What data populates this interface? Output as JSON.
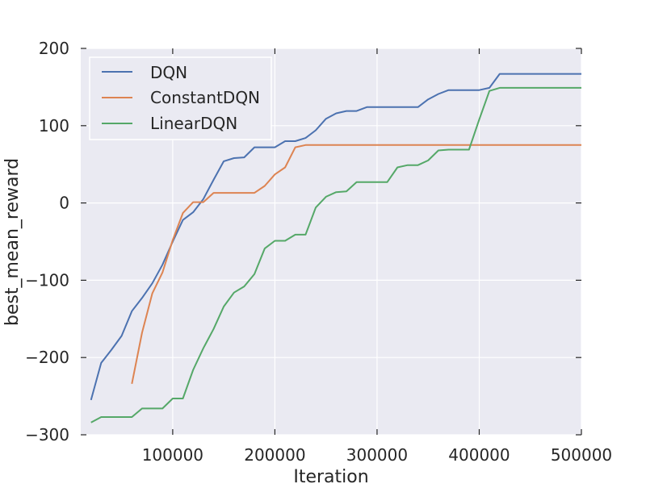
{
  "chart_data": {
    "type": "line",
    "title": "",
    "xlabel": "Iteration",
    "ylabel": "best_mean_reward",
    "xlim": [
      10000,
      500000
    ],
    "ylim": [
      -300,
      200
    ],
    "grid": true,
    "plot_background": "#eaeaf2",
    "grid_color": "#ffffff",
    "legend_position": "upper-left",
    "x_ticks": [
      100000,
      200000,
      300000,
      400000,
      500000
    ],
    "x_tick_labels": [
      "100000",
      "200000",
      "300000",
      "400000",
      "500000"
    ],
    "y_ticks": [
      -300,
      -200,
      -100,
      0,
      100,
      200
    ],
    "y_tick_labels": [
      "−300",
      "−200",
      "−100",
      "0",
      "100",
      "200"
    ],
    "series": [
      {
        "name": "DQN",
        "color": "#4c72b0",
        "points": [
          [
            20000,
            -255
          ],
          [
            30000,
            -207
          ],
          [
            40000,
            -190
          ],
          [
            50000,
            -172
          ],
          [
            60000,
            -140
          ],
          [
            70000,
            -123
          ],
          [
            80000,
            -104
          ],
          [
            90000,
            -80
          ],
          [
            100000,
            -50
          ],
          [
            110000,
            -22
          ],
          [
            120000,
            -12
          ],
          [
            130000,
            5
          ],
          [
            140000,
            30
          ],
          [
            150000,
            54
          ],
          [
            160000,
            58
          ],
          [
            170000,
            59
          ],
          [
            180000,
            72
          ],
          [
            190000,
            72
          ],
          [
            200000,
            72
          ],
          [
            210000,
            80
          ],
          [
            220000,
            80
          ],
          [
            230000,
            84
          ],
          [
            240000,
            94
          ],
          [
            250000,
            109
          ],
          [
            260000,
            116
          ],
          [
            270000,
            119
          ],
          [
            280000,
            119
          ],
          [
            290000,
            124
          ],
          [
            300000,
            124
          ],
          [
            310000,
            124
          ],
          [
            320000,
            124
          ],
          [
            330000,
            124
          ],
          [
            340000,
            124
          ],
          [
            350000,
            134
          ],
          [
            360000,
            141
          ],
          [
            370000,
            146
          ],
          [
            380000,
            146
          ],
          [
            390000,
            146
          ],
          [
            400000,
            146
          ],
          [
            410000,
            149
          ],
          [
            420000,
            167
          ],
          [
            430000,
            167
          ],
          [
            440000,
            167
          ],
          [
            450000,
            167
          ],
          [
            460000,
            167
          ],
          [
            470000,
            167
          ],
          [
            480000,
            167
          ],
          [
            490000,
            167
          ],
          [
            500000,
            167
          ]
        ]
      },
      {
        "name": "ConstantDQN",
        "color": "#dd8452",
        "points": [
          [
            60000,
            -234
          ],
          [
            70000,
            -168
          ],
          [
            80000,
            -117
          ],
          [
            90000,
            -90
          ],
          [
            100000,
            -48
          ],
          [
            110000,
            -13
          ],
          [
            120000,
            1
          ],
          [
            130000,
            1
          ],
          [
            140000,
            13
          ],
          [
            150000,
            13
          ],
          [
            160000,
            13
          ],
          [
            170000,
            13
          ],
          [
            180000,
            13
          ],
          [
            190000,
            22
          ],
          [
            200000,
            37
          ],
          [
            210000,
            46
          ],
          [
            220000,
            72
          ],
          [
            230000,
            75
          ],
          [
            240000,
            75
          ],
          [
            250000,
            75
          ],
          [
            260000,
            75
          ],
          [
            270000,
            75
          ],
          [
            280000,
            75
          ],
          [
            290000,
            75
          ],
          [
            300000,
            75
          ],
          [
            310000,
            75
          ],
          [
            320000,
            75
          ],
          [
            330000,
            75
          ],
          [
            340000,
            75
          ],
          [
            350000,
            75
          ],
          [
            360000,
            75
          ],
          [
            370000,
            75
          ],
          [
            380000,
            75
          ],
          [
            390000,
            75
          ],
          [
            400000,
            75
          ],
          [
            410000,
            75
          ],
          [
            420000,
            75
          ],
          [
            430000,
            75
          ],
          [
            440000,
            75
          ],
          [
            450000,
            75
          ],
          [
            460000,
            75
          ],
          [
            470000,
            75
          ],
          [
            480000,
            75
          ],
          [
            490000,
            75
          ],
          [
            500000,
            75
          ]
        ]
      },
      {
        "name": "LinearDQN",
        "color": "#55a868",
        "points": [
          [
            20000,
            -284
          ],
          [
            30000,
            -277
          ],
          [
            40000,
            -277
          ],
          [
            50000,
            -277
          ],
          [
            60000,
            -277
          ],
          [
            70000,
            -266
          ],
          [
            80000,
            -266
          ],
          [
            90000,
            -266
          ],
          [
            100000,
            -253
          ],
          [
            110000,
            -253
          ],
          [
            120000,
            -216
          ],
          [
            130000,
            -188
          ],
          [
            140000,
            -163
          ],
          [
            150000,
            -134
          ],
          [
            160000,
            -116
          ],
          [
            170000,
            -108
          ],
          [
            180000,
            -92
          ],
          [
            190000,
            -59
          ],
          [
            200000,
            -49
          ],
          [
            210000,
            -49
          ],
          [
            220000,
            -41
          ],
          [
            230000,
            -41
          ],
          [
            240000,
            -6
          ],
          [
            250000,
            8
          ],
          [
            260000,
            14
          ],
          [
            270000,
            15
          ],
          [
            280000,
            27
          ],
          [
            290000,
            27
          ],
          [
            300000,
            27
          ],
          [
            310000,
            27
          ],
          [
            320000,
            46
          ],
          [
            330000,
            49
          ],
          [
            340000,
            49
          ],
          [
            350000,
            55
          ],
          [
            360000,
            68
          ],
          [
            370000,
            69
          ],
          [
            380000,
            69
          ],
          [
            390000,
            69
          ],
          [
            400000,
            108
          ],
          [
            410000,
            145
          ],
          [
            420000,
            149
          ],
          [
            430000,
            149
          ],
          [
            440000,
            149
          ],
          [
            450000,
            149
          ],
          [
            460000,
            149
          ],
          [
            470000,
            149
          ],
          [
            480000,
            149
          ],
          [
            490000,
            149
          ],
          [
            500000,
            149
          ]
        ]
      }
    ]
  }
}
